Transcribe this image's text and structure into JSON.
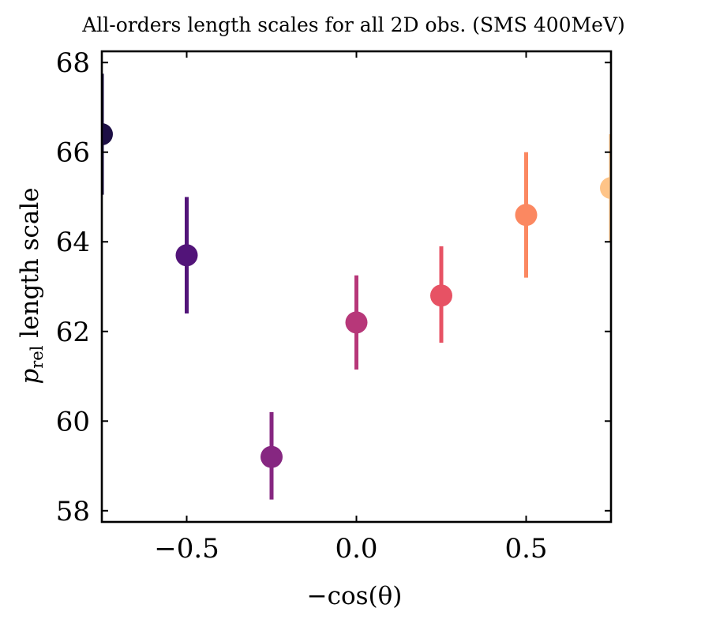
{
  "chart_data": {
    "type": "scatter",
    "title": "All-orders length scales for all 2D obs. (SMS 400MeV)",
    "xlabel": "−cos(θ)",
    "ylabel": {
      "main": "p",
      "subscript": "rel",
      "rest": " length scale"
    },
    "xlim": [
      -0.75,
      0.75
    ],
    "ylim": [
      57.75,
      68.25
    ],
    "xticks": [
      -0.5,
      0.0,
      0.5
    ],
    "xtick_labels": [
      "−0.5",
      "0.0",
      "0.5"
    ],
    "yticks": [
      58,
      60,
      62,
      64,
      66,
      68
    ],
    "ytick_labels": [
      "58",
      "60",
      "62",
      "64",
      "66",
      "68"
    ],
    "grid": false,
    "legend": "none",
    "points": [
      {
        "x": -0.75,
        "y": 66.4,
        "err_low": 65.05,
        "err_high": 67.75,
        "color": "#1d0f45"
      },
      {
        "x": -0.5,
        "y": 63.7,
        "err_low": 62.4,
        "err_high": 65.0,
        "color": "#521479"
      },
      {
        "x": -0.25,
        "y": 59.2,
        "err_low": 58.25,
        "err_high": 60.2,
        "color": "#862781"
      },
      {
        "x": 0.0,
        "y": 62.2,
        "err_low": 61.15,
        "err_high": 63.25,
        "color": "#b73779"
      },
      {
        "x": 0.25,
        "y": 62.8,
        "err_low": 61.75,
        "err_high": 63.9,
        "color": "#e75264"
      },
      {
        "x": 0.5,
        "y": 64.6,
        "err_low": 63.2,
        "err_high": 66.0,
        "color": "#fb8861"
      },
      {
        "x": 0.75,
        "y": 65.2,
        "err_low": 64.0,
        "err_high": 66.4,
        "color": "#fec488"
      }
    ]
  }
}
